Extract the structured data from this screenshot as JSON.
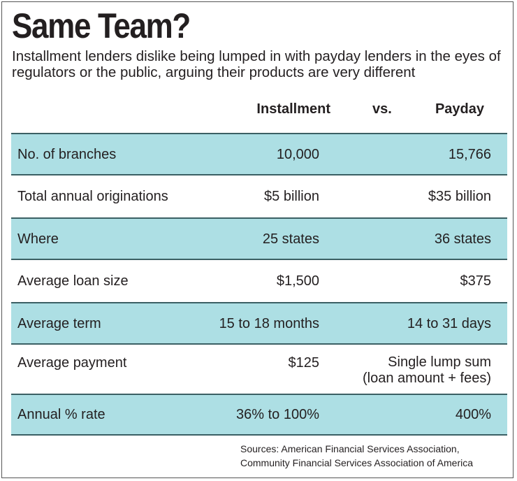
{
  "title": "Same Team?",
  "subtitle": "Installment lenders dislike being lumped in with payday lenders in the eyes of regulators or the public, arguing their products are very different",
  "columns": {
    "installment": "Installment",
    "vs": "vs.",
    "payday": "Payday"
  },
  "sources": {
    "line1": "Sources: American Financial Services Association,",
    "line2": "Community Financial Services Association of America"
  },
  "colors": {
    "row_shading": "#addfe4",
    "row_border": "#3b6064",
    "frame": "#555555"
  },
  "chart_data": {
    "type": "table",
    "title": "Same Team?",
    "subtitle": "Installment lenders dislike being lumped in with payday lenders in the eyes of regulators or the public, arguing their products are very different",
    "columns": [
      "Installment",
      "vs.",
      "Payday"
    ],
    "rows": [
      {
        "label": "No. of branches",
        "installment": "10,000",
        "payday": "15,766",
        "shaded": true
      },
      {
        "label": "Total annual originations",
        "installment": "$5 billion",
        "payday": "$35 billion",
        "shaded": false
      },
      {
        "label": "Where",
        "installment": "25 states",
        "payday": "36 states",
        "shaded": true
      },
      {
        "label": "Average loan size",
        "installment": "$1,500",
        "payday": "$375",
        "shaded": false
      },
      {
        "label": "Average term",
        "installment": "15 to 18 months",
        "payday": "14 to 31 days",
        "shaded": true
      },
      {
        "label": "Average payment",
        "installment": "$125",
        "payday": "Single lump sum\n(loan amount + fees)",
        "shaded": false
      },
      {
        "label": "Annual % rate",
        "installment": "36% to 100%",
        "payday": "400%",
        "shaded": true
      }
    ]
  }
}
